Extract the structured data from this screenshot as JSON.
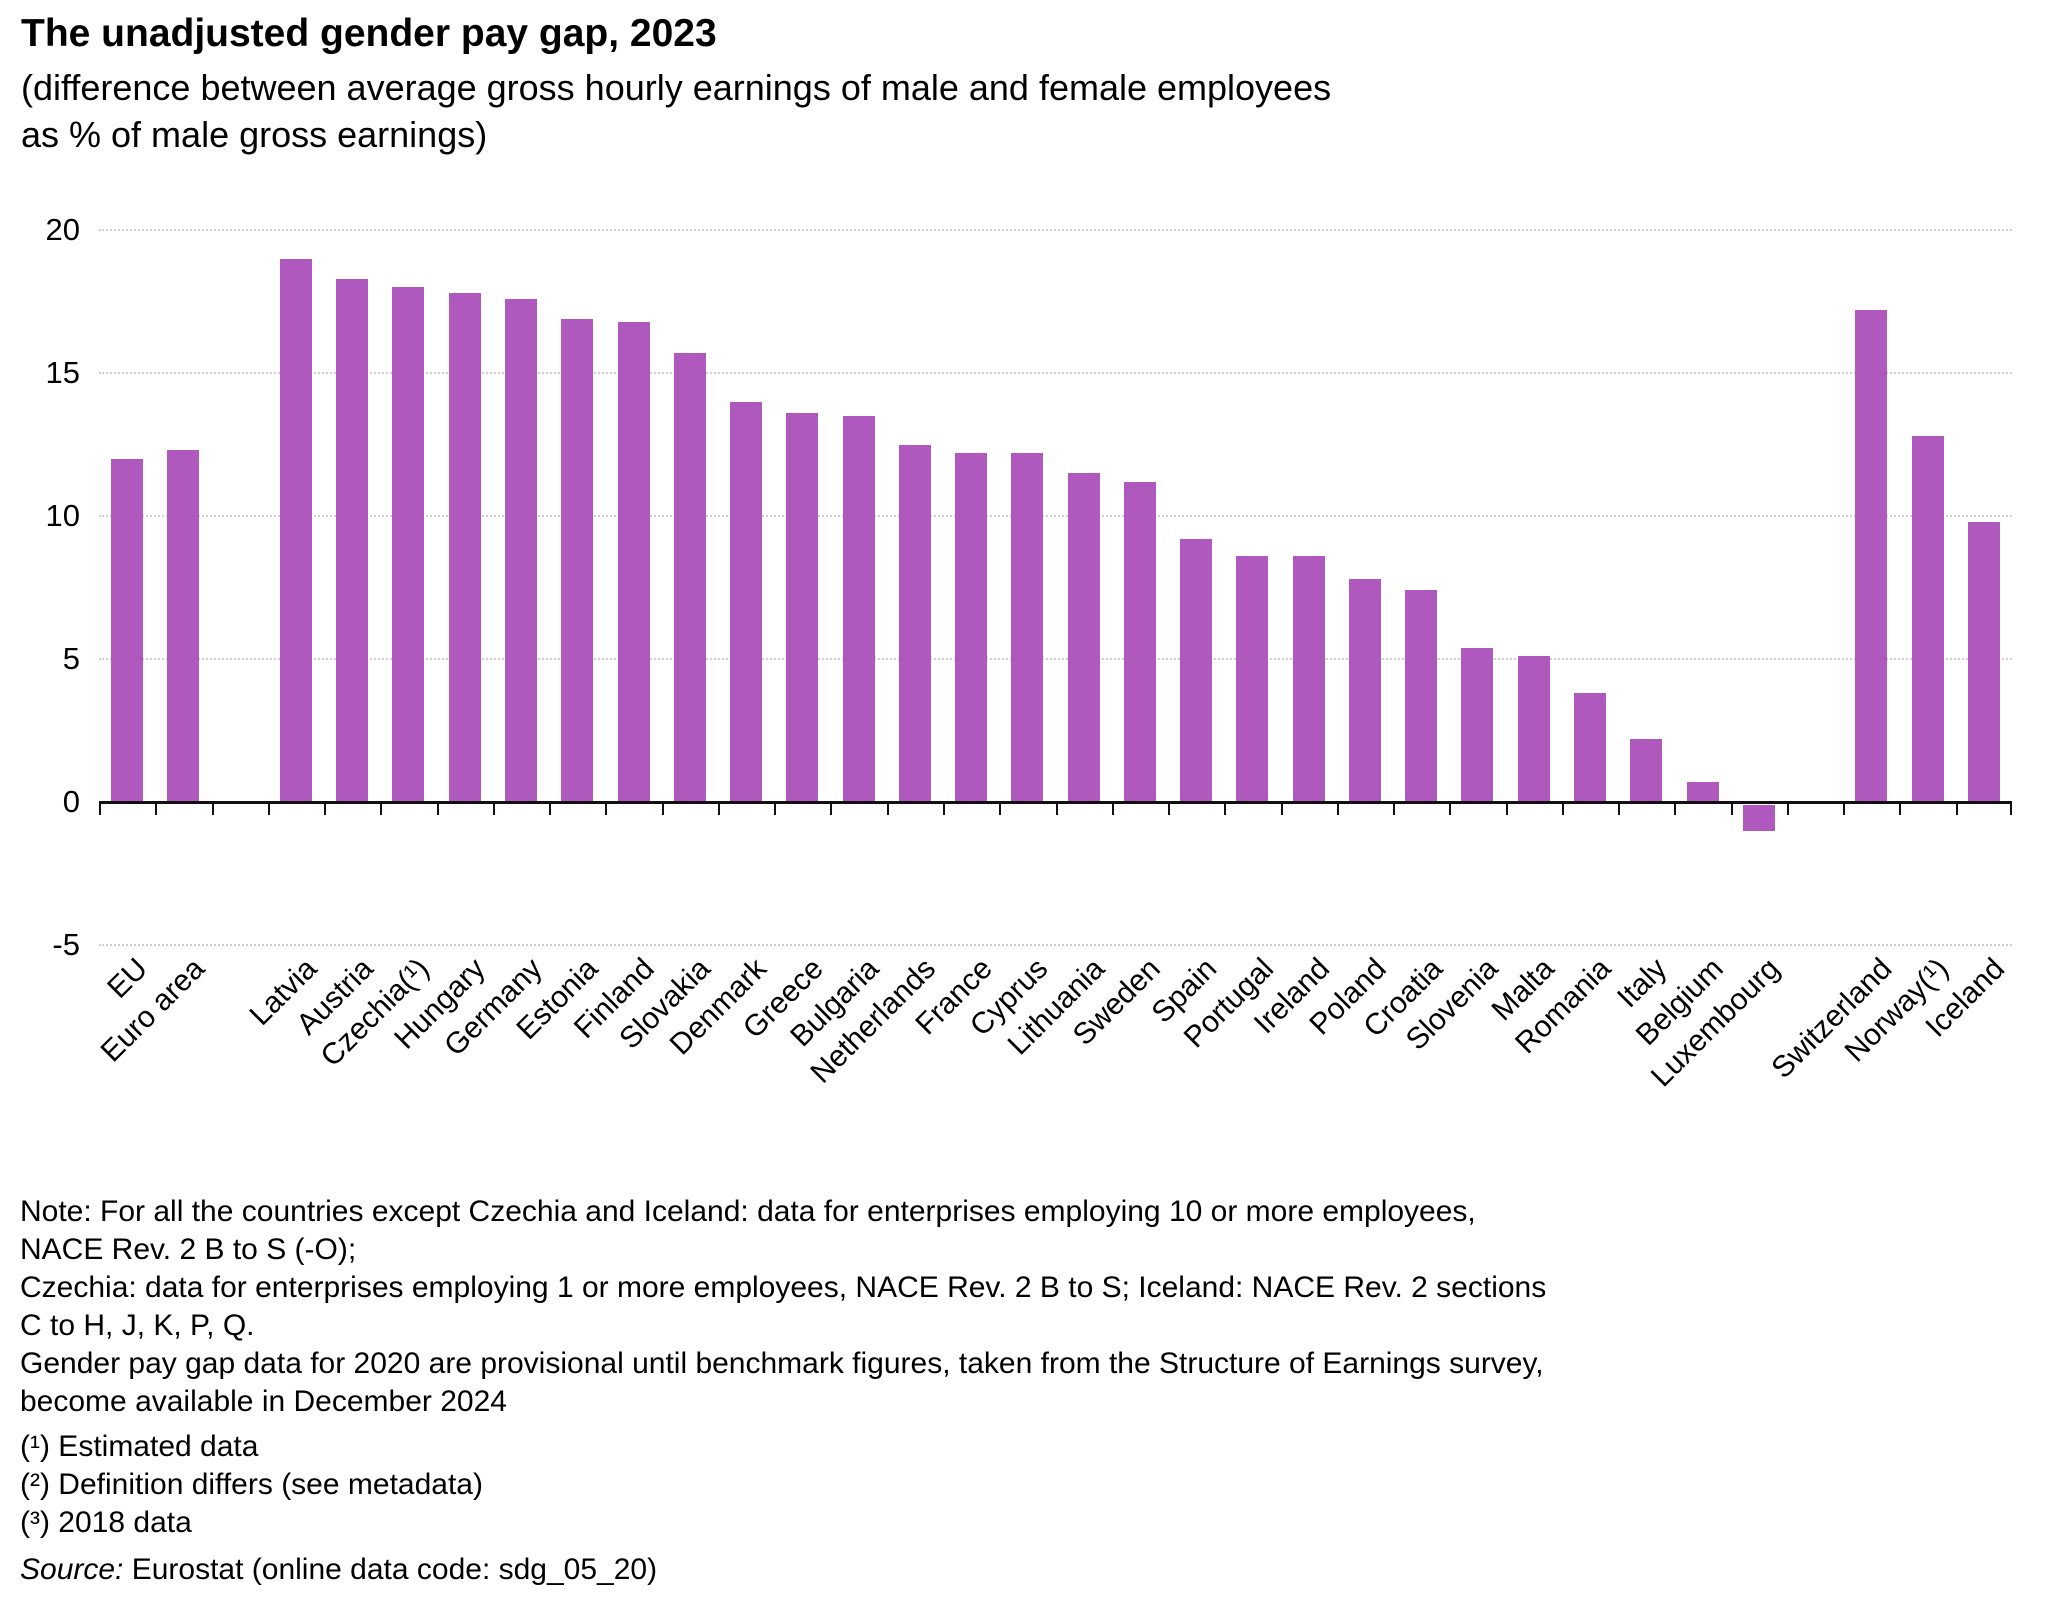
{
  "header": {
    "title": "The unadjusted gender pay gap, 2023",
    "subtitle_line1": "(difference between average gross hourly earnings of male and female employees",
    "subtitle_line2": "as % of male gross earnings)"
  },
  "chart_data": {
    "type": "bar",
    "title": "The unadjusted gender pay gap, 2023",
    "xlabel": "",
    "ylabel": "% of male gross earnings",
    "ylim": [
      -5,
      20
    ],
    "yticks": [
      20,
      15,
      10,
      5,
      0,
      -5
    ],
    "grid": "horizontal-dotted",
    "legend": "none",
    "bar_color": "#AF58BD",
    "categories": [
      "EU",
      "Euro area",
      "",
      "Latvia",
      "Austria",
      "Czechia(¹)",
      "Hungary",
      "Germany",
      "Estonia",
      "Finland",
      "Slovakia",
      "Denmark",
      "Greece",
      "Bulgaria",
      "Netherlands",
      "France",
      "Cyprus",
      "Lithuania",
      "Sweden",
      "Spain",
      "Portugal",
      "Ireland",
      "Poland",
      "Croatia",
      "Slovenia",
      "Malta",
      "Romania",
      "Italy",
      "Belgium",
      "Luxembourg",
      "",
      "Switzerland",
      "Norway(¹)",
      "Iceland"
    ],
    "values": [
      12.0,
      12.3,
      null,
      19.0,
      18.3,
      18.0,
      17.8,
      17.6,
      16.9,
      16.8,
      15.7,
      14.0,
      13.6,
      13.5,
      12.5,
      12.2,
      12.2,
      11.5,
      11.2,
      9.2,
      8.6,
      8.6,
      7.8,
      7.4,
      5.4,
      5.1,
      3.8,
      2.2,
      0.7,
      -0.9,
      null,
      17.2,
      12.8,
      9.8
    ]
  },
  "notes": {
    "lines": [
      "Note: For all the countries except Czechia and Iceland: data for enterprises employing 10 or more employees,",
      "NACE Rev. 2 B to S (-O);",
      "Czechia: data for enterprises employing 1 or more employees, NACE Rev. 2 B to S; Iceland: NACE Rev. 2 sections",
      "C to H, J, K, P, Q.",
      "Gender pay gap data for 2020 are provisional until benchmark figures, taken from the Structure of Earnings survey,",
      "become available in December 2024"
    ]
  },
  "footnotes": {
    "lines": [
      "(¹) Estimated data",
      "(²) Definition differs (see metadata)",
      "(³) 2018 data"
    ]
  },
  "source": {
    "label": "Source:",
    "text": " Eurostat (online data code: sdg_05_20)"
  }
}
